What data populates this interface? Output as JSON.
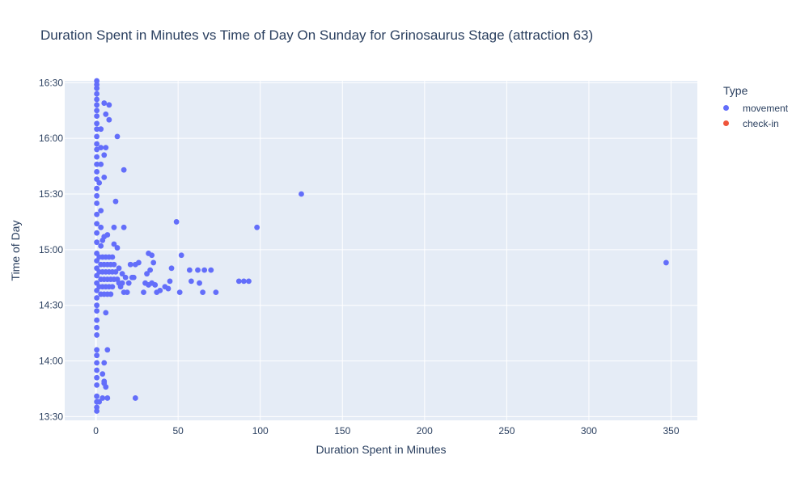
{
  "title": "Duration Spent in Minutes vs Time of Day On Sunday for Grinosaurus Stage (attraction 63)",
  "legend": {
    "title": "Type",
    "items": [
      {
        "label": "movement",
        "color": "#636efa"
      },
      {
        "label": "check-in",
        "color": "#ef553b"
      }
    ]
  },
  "chart_data": {
    "type": "scatter",
    "title": "Duration Spent in Minutes vs Time of Day On Sunday for Grinosaurus Stage (attraction 63)",
    "xlabel": "Duration Spent in Minutes",
    "ylabel": "Time of Day",
    "xlim": [
      -19,
      366
    ],
    "ylim": [
      "13:28",
      "16:31"
    ],
    "x_ticks": [
      0,
      50,
      100,
      150,
      200,
      250,
      300,
      350
    ],
    "y_ticks": [
      "13:30",
      "14:00",
      "14:30",
      "15:00",
      "15:30",
      "16:00",
      "16:30"
    ],
    "grid": true,
    "legend_position": "right",
    "series": [
      {
        "name": "movement",
        "color": "#636efa",
        "points": [
          [
            0.5,
            "16:31"
          ],
          [
            0.5,
            "16:29"
          ],
          [
            0.5,
            "16:27"
          ],
          [
            0.5,
            "16:24"
          ],
          [
            0.5,
            "16:21"
          ],
          [
            0.5,
            "16:18"
          ],
          [
            0.5,
            "16:15"
          ],
          [
            0.5,
            "16:12"
          ],
          [
            0.5,
            "16:08"
          ],
          [
            0.5,
            "16:05"
          ],
          [
            0.5,
            "16:01"
          ],
          [
            0.5,
            "15:57"
          ],
          [
            0.5,
            "15:54"
          ],
          [
            0.5,
            "15:50"
          ],
          [
            0.5,
            "15:46"
          ],
          [
            0.5,
            "15:42"
          ],
          [
            0.5,
            "15:38"
          ],
          [
            0.5,
            "15:33"
          ],
          [
            0.5,
            "15:29"
          ],
          [
            0.5,
            "15:25"
          ],
          [
            0.5,
            "15:19"
          ],
          [
            0.5,
            "15:14"
          ],
          [
            0.5,
            "15:09"
          ],
          [
            0.5,
            "15:04"
          ],
          [
            0.5,
            "14:58"
          ],
          [
            0.5,
            "14:54"
          ],
          [
            0.5,
            "14:50"
          ],
          [
            0.5,
            "14:46"
          ],
          [
            0.5,
            "14:42"
          ],
          [
            0.5,
            "14:38"
          ],
          [
            0.5,
            "14:34"
          ],
          [
            0.5,
            "14:30"
          ],
          [
            0.5,
            "14:27"
          ],
          [
            0.5,
            "14:22"
          ],
          [
            0.5,
            "14:18"
          ],
          [
            0.5,
            "14:14"
          ],
          [
            0.5,
            "14:06"
          ],
          [
            0.5,
            "14:03"
          ],
          [
            0.5,
            "13:59"
          ],
          [
            0.5,
            "13:55"
          ],
          [
            0.5,
            "13:51"
          ],
          [
            0.5,
            "13:47"
          ],
          [
            0.5,
            "13:41"
          ],
          [
            0.5,
            "13:38"
          ],
          [
            0.5,
            "13:35"
          ],
          [
            0.5,
            "13:33"
          ],
          [
            5,
            "16:19"
          ],
          [
            8,
            "16:18"
          ],
          [
            6,
            "16:13"
          ],
          [
            8,
            "16:10"
          ],
          [
            3,
            "16:05"
          ],
          [
            13,
            "16:01"
          ],
          [
            6,
            "15:55"
          ],
          [
            3,
            "15:55"
          ],
          [
            5,
            "15:51"
          ],
          [
            3,
            "15:46"
          ],
          [
            17,
            "15:43"
          ],
          [
            5,
            "15:39"
          ],
          [
            2,
            "15:36"
          ],
          [
            12,
            "15:26"
          ],
          [
            3,
            "15:21"
          ],
          [
            3,
            "15:12"
          ],
          [
            11,
            "15:12"
          ],
          [
            17,
            "15:12"
          ],
          [
            7,
            "15:08"
          ],
          [
            5,
            "15:07"
          ],
          [
            4,
            "15:05"
          ],
          [
            11,
            "15:03"
          ],
          [
            13,
            "15:01"
          ],
          [
            3,
            "15:02"
          ],
          [
            2,
            "14:56"
          ],
          [
            4,
            "14:56"
          ],
          [
            6,
            "14:56"
          ],
          [
            8,
            "14:56"
          ],
          [
            10,
            "14:56"
          ],
          [
            3,
            "14:52"
          ],
          [
            5,
            "14:52"
          ],
          [
            7,
            "14:52"
          ],
          [
            9,
            "14:52"
          ],
          [
            11,
            "14:52"
          ],
          [
            2,
            "14:48"
          ],
          [
            4,
            "14:48"
          ],
          [
            6,
            "14:48"
          ],
          [
            8,
            "14:48"
          ],
          [
            10,
            "14:48"
          ],
          [
            12,
            "14:48"
          ],
          [
            3,
            "14:44"
          ],
          [
            5,
            "14:44"
          ],
          [
            7,
            "14:44"
          ],
          [
            9,
            "14:44"
          ],
          [
            11,
            "14:44"
          ],
          [
            13,
            "14:44"
          ],
          [
            2,
            "14:40"
          ],
          [
            4,
            "14:40"
          ],
          [
            6,
            "14:40"
          ],
          [
            8,
            "14:40"
          ],
          [
            10,
            "14:40"
          ],
          [
            3,
            "14:36"
          ],
          [
            5,
            "14:36"
          ],
          [
            7,
            "14:36"
          ],
          [
            9,
            "14:36"
          ],
          [
            14,
            "14:50"
          ],
          [
            16,
            "14:47"
          ],
          [
            18,
            "14:45"
          ],
          [
            20,
            "14:42"
          ],
          [
            22,
            "14:45"
          ],
          [
            24,
            "14:52"
          ],
          [
            21,
            "14:52"
          ],
          [
            26,
            "14:53"
          ],
          [
            15,
            "14:40"
          ],
          [
            17,
            "14:37"
          ],
          [
            19,
            "14:37"
          ],
          [
            14,
            "14:42"
          ],
          [
            16,
            "14:42"
          ],
          [
            23,
            "14:45"
          ],
          [
            29,
            "14:37"
          ],
          [
            31,
            "14:47"
          ],
          [
            33,
            "14:49"
          ],
          [
            32,
            "14:58"
          ],
          [
            34,
            "14:57"
          ],
          [
            30,
            "14:42"
          ],
          [
            32,
            "14:41"
          ],
          [
            34,
            "14:42"
          ],
          [
            35,
            "14:53"
          ],
          [
            36,
            "14:41"
          ],
          [
            37,
            "14:37"
          ],
          [
            39,
            "14:38"
          ],
          [
            42,
            "14:40"
          ],
          [
            44,
            "14:39"
          ],
          [
            45,
            "14:43"
          ],
          [
            46,
            "14:50"
          ],
          [
            51,
            "14:37"
          ],
          [
            52,
            "14:57"
          ],
          [
            57,
            "14:49"
          ],
          [
            58,
            "14:43"
          ],
          [
            62,
            "14:49"
          ],
          [
            63,
            "14:42"
          ],
          [
            65,
            "14:37"
          ],
          [
            66,
            "14:49"
          ],
          [
            70,
            "14:49"
          ],
          [
            73,
            "14:37"
          ],
          [
            87,
            "14:43"
          ],
          [
            90,
            "14:43"
          ],
          [
            93,
            "14:43"
          ],
          [
            6,
            "14:26"
          ],
          [
            7,
            "14:06"
          ],
          [
            5,
            "13:59"
          ],
          [
            4,
            "13:53"
          ],
          [
            5,
            "13:49"
          ],
          [
            5,
            "13:48"
          ],
          [
            6,
            "13:46"
          ],
          [
            4,
            "13:40"
          ],
          [
            7,
            "13:40"
          ],
          [
            2,
            "13:38"
          ],
          [
            24,
            "13:40"
          ],
          [
            49,
            "15:15"
          ],
          [
            98,
            "15:12"
          ],
          [
            125,
            "15:30"
          ],
          [
            347,
            "14:53"
          ]
        ]
      },
      {
        "name": "check-in",
        "color": "#ef553b",
        "points": []
      }
    ]
  }
}
